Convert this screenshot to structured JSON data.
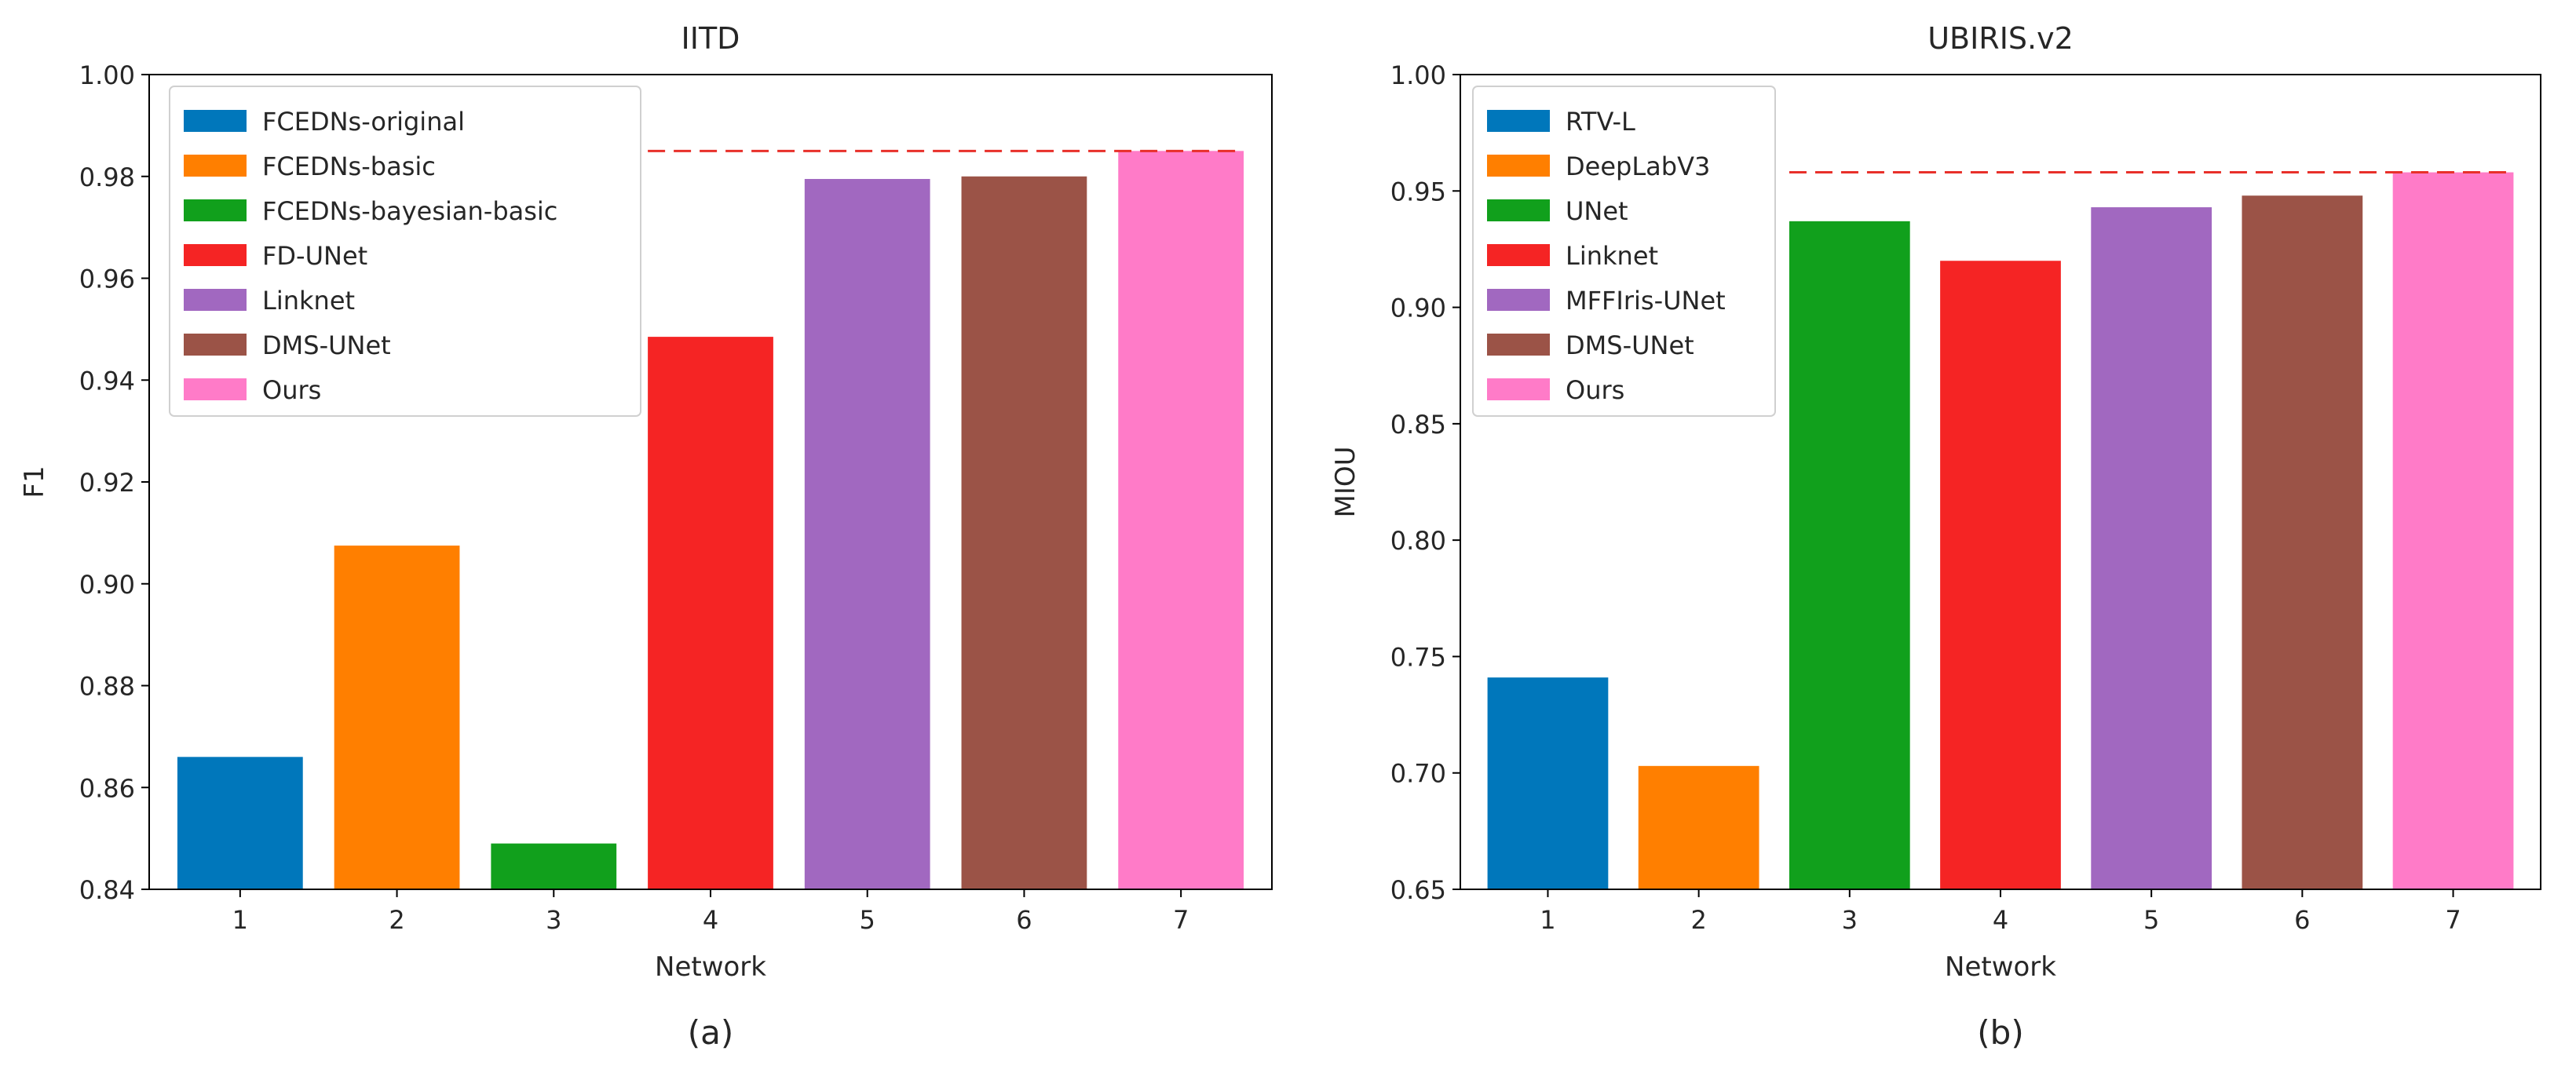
{
  "chart_data": [
    {
      "type": "bar",
      "title": "IITD",
      "xlabel": "Network",
      "ylabel": "F1",
      "caption": "(a)",
      "categories": [
        "1",
        "2",
        "3",
        "4",
        "5",
        "6",
        "7"
      ],
      "values": [
        0.866,
        0.9075,
        0.849,
        0.9485,
        0.9795,
        0.98,
        0.985
      ],
      "series_names": [
        "FCEDNs-original",
        "FCEDNs-basic",
        "FCEDNs-bayesian-basic",
        "FD-UNet",
        "Linknet",
        "DMS-UNet",
        "Ours"
      ],
      "colors": [
        "#0077bb",
        "#ff7f00",
        "#11a01c",
        "#f52424",
        "#a168c0",
        "#9b5347",
        "#ff7bc8"
      ],
      "ylim": [
        0.84,
        1.0
      ],
      "yticks": [
        "0.84",
        "0.86",
        "0.88",
        "0.90",
        "0.92",
        "0.94",
        "0.96",
        "0.98",
        "1.00"
      ],
      "reference_line": {
        "value": 0.985,
        "style": "dashed",
        "color": "#e8302a",
        "from_category": 4,
        "to_category": 7
      },
      "legend_position": "top-left"
    },
    {
      "type": "bar",
      "title": "UBIRIS.v2",
      "xlabel": "Network",
      "ylabel": "MIOU",
      "caption": "(b)",
      "categories": [
        "1",
        "2",
        "3",
        "4",
        "5",
        "6",
        "7"
      ],
      "values": [
        0.741,
        0.703,
        0.937,
        0.92,
        0.943,
        0.948,
        0.958
      ],
      "series_names": [
        "RTV-L",
        "DeepLabV3",
        "UNet",
        "Linknet",
        "MFFIris-UNet",
        "DMS-UNet",
        "Ours"
      ],
      "colors": [
        "#0077bb",
        "#ff7f00",
        "#11a01c",
        "#f52424",
        "#a168c0",
        "#9b5347",
        "#ff7bc8"
      ],
      "ylim": [
        0.65,
        1.0
      ],
      "yticks": [
        "0.65",
        "0.70",
        "0.75",
        "0.80",
        "0.85",
        "0.90",
        "0.95",
        "1.00"
      ],
      "reference_line": {
        "value": 0.958,
        "style": "dashed",
        "color": "#e8302a",
        "from_category": 3,
        "to_category": 7
      },
      "legend_position": "top-left"
    }
  ]
}
